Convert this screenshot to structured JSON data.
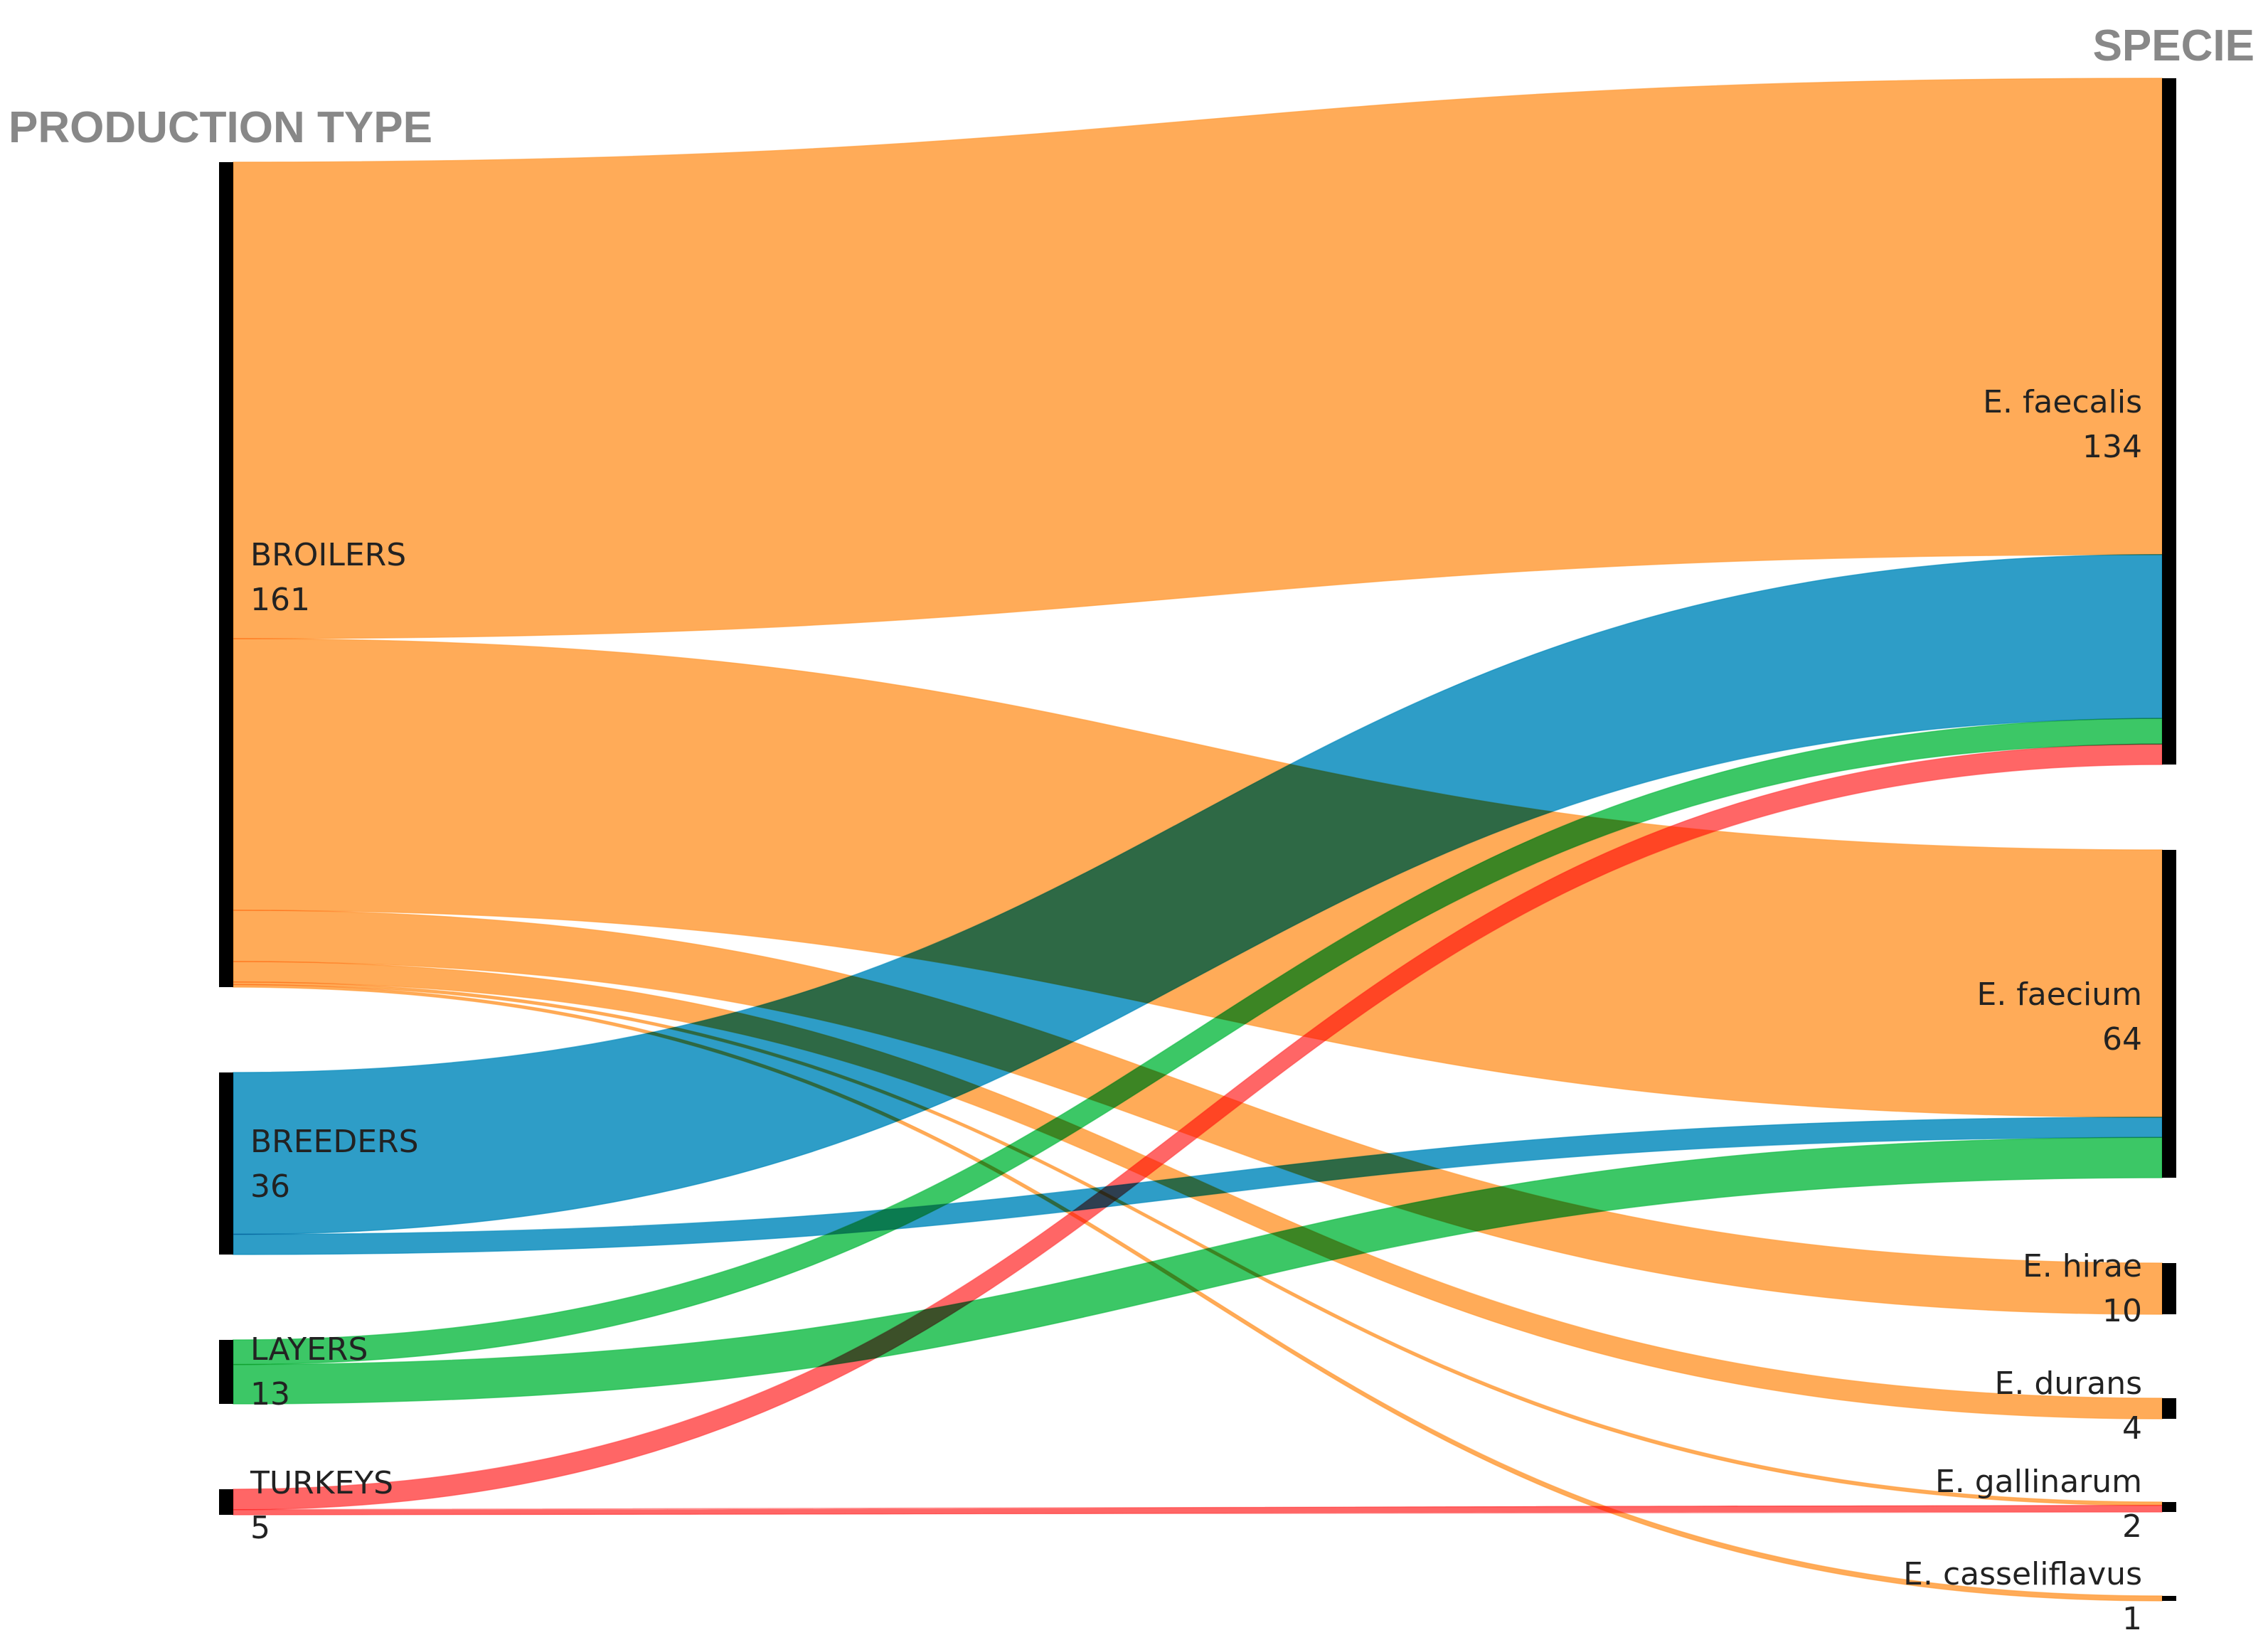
{
  "chart_data": {
    "type": "sankey",
    "left_title": "PRODUCTION TYPE",
    "right_title": "SPECIE",
    "sources": [
      {
        "id": "broilers",
        "label": "BROILERS",
        "value": "161",
        "color": "#ff9933"
      },
      {
        "id": "breeders",
        "label": "BREEDERS",
        "value": "36",
        "color": "#0088bb"
      },
      {
        "id": "layers",
        "label": "LAYERS",
        "value": "13",
        "color": "#11bb44"
      },
      {
        "id": "turkeys",
        "label": "TURKEYS",
        "value": "5",
        "color": "#ff4444"
      }
    ],
    "targets": [
      {
        "id": "faecalis",
        "label": "E. faecalis",
        "value": "134"
      },
      {
        "id": "faecium",
        "label": "E. faecium",
        "value": "64"
      },
      {
        "id": "hirae",
        "label": "E. hirae",
        "value": "10"
      },
      {
        "id": "durans",
        "label": "E. durans",
        "value": "4"
      },
      {
        "id": "gallinarum",
        "label": "E. gallinarum",
        "value": "2"
      },
      {
        "id": "casseliflavus",
        "label": "E. casseliflavus",
        "value": "1"
      }
    ],
    "flows": [
      {
        "source": "broilers",
        "target": "faecalis",
        "value": 93
      },
      {
        "source": "broilers",
        "target": "faecium",
        "value": 53
      },
      {
        "source": "broilers",
        "target": "hirae",
        "value": 10
      },
      {
        "source": "broilers",
        "target": "durans",
        "value": 4
      },
      {
        "source": "broilers",
        "target": "gallinarum",
        "value": 0.5
      },
      {
        "source": "broilers",
        "target": "casseliflavus",
        "value": 0.5
      },
      {
        "source": "breeders",
        "target": "faecalis",
        "value": 32
      },
      {
        "source": "breeders",
        "target": "faecium",
        "value": 4
      },
      {
        "source": "layers",
        "target": "faecalis",
        "value": 5
      },
      {
        "source": "layers",
        "target": "faecium",
        "value": 8
      },
      {
        "source": "turkeys",
        "target": "faecalis",
        "value": 4
      },
      {
        "source": "turkeys",
        "target": "gallinarum",
        "value": 1
      }
    ]
  }
}
